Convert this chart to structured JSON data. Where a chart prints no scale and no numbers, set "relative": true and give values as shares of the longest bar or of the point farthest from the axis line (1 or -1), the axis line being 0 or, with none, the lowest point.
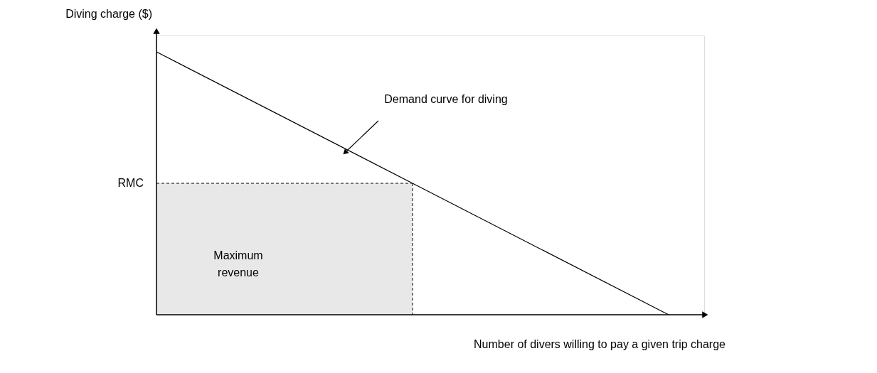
{
  "chart_data": {
    "type": "line",
    "relative": true,
    "xlabel": "Number of divers willing to pay a given trip charge",
    "ylabel": "Diving charge ($)",
    "categories": [
      null,
      null,
      null
    ],
    "series": [
      {
        "color": "#000000",
        "values": [
          1,
          0.5,
          0
        ]
      },
      {
        "type": "area",
        "color": "#e8e8e8",
        "line_style": "dashed",
        "values": [
          0.5,
          0.5,
          null
        ]
      }
    ],
    "annotations": [
      "Demand curve for diving",
      "Maximum revenue",
      "RMC"
    ]
  }
}
